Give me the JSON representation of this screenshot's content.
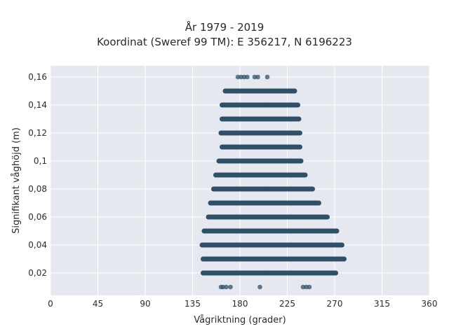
{
  "chart_data": {
    "type": "scatter",
    "title": "År 1979 - 2019",
    "subtitle": "Koordinat (Sweref 99 TM): E 356217, N 6196223",
    "xlabel": "Vågriktning (grader)",
    "ylabel": "Signifikant våghöjd (m)",
    "xlim": [
      0,
      360
    ],
    "ylim": [
      0.004,
      0.168
    ],
    "x_ticks": [
      0,
      45,
      90,
      135,
      180,
      225,
      270,
      315,
      360
    ],
    "y_ticks": [
      0.02,
      0.04,
      0.06,
      0.08,
      0.1,
      0.12,
      0.14,
      0.16
    ],
    "y_tick_labels": [
      "0,02",
      "0,04",
      "0,06",
      "0,08",
      "0,1",
      "0,12",
      "0,14",
      "0,16"
    ],
    "grid": true,
    "point_color": "#2f5068",
    "background_color": "#e6e8f0",
    "bands": [
      {
        "y": 0.01,
        "x_min": 162,
        "x_max": 172,
        "isolated_x": [
          162,
          164,
          167,
          171,
          199,
          240,
          243,
          246
        ]
      },
      {
        "y": 0.02,
        "x_min": 145,
        "x_max": 271
      },
      {
        "y": 0.03,
        "x_min": 145,
        "x_max": 279
      },
      {
        "y": 0.04,
        "x_min": 144,
        "x_max": 277
      },
      {
        "y": 0.05,
        "x_min": 146,
        "x_max": 272
      },
      {
        "y": 0.06,
        "x_min": 150,
        "x_max": 263
      },
      {
        "y": 0.07,
        "x_min": 152,
        "x_max": 255
      },
      {
        "y": 0.08,
        "x_min": 155,
        "x_max": 249
      },
      {
        "y": 0.09,
        "x_min": 157,
        "x_max": 242
      },
      {
        "y": 0.1,
        "x_min": 160,
        "x_max": 238
      },
      {
        "y": 0.11,
        "x_min": 163,
        "x_max": 237
      },
      {
        "y": 0.12,
        "x_min": 162,
        "x_max": 237
      },
      {
        "y": 0.13,
        "x_min": 163,
        "x_max": 236
      },
      {
        "y": 0.14,
        "x_min": 163,
        "x_max": 235
      },
      {
        "y": 0.15,
        "x_min": 166,
        "x_max": 232
      },
      {
        "y": 0.16,
        "x_min": 178,
        "x_max": 188,
        "isolated_x": [
          178,
          181,
          184,
          187,
          194,
          197,
          206
        ]
      }
    ]
  }
}
